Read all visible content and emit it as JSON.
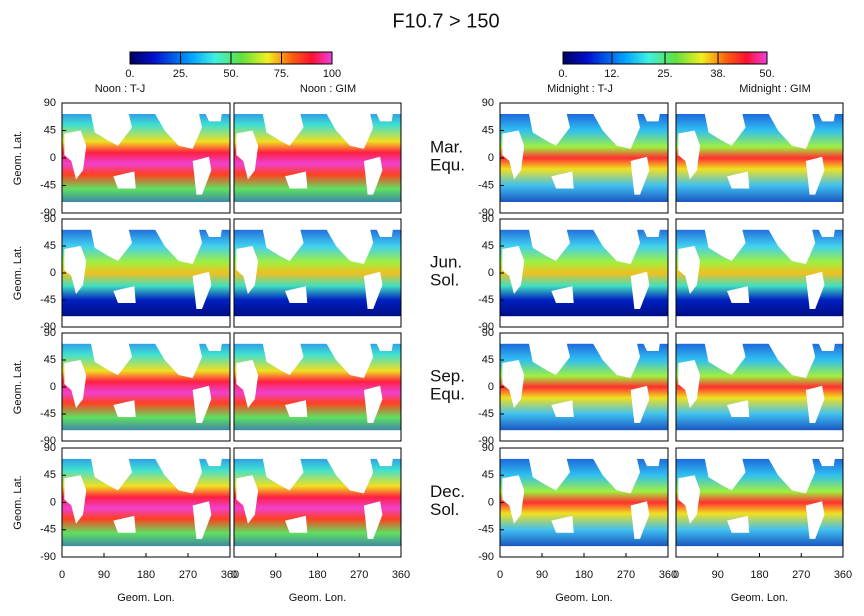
{
  "title": "F10.7 > 150",
  "colorbars": [
    {
      "lim": [
        0,
        100
      ],
      "ticks": [
        {
          "value": 0,
          "label": "0."
        },
        {
          "value": 25,
          "label": "25."
        },
        {
          "value": 50,
          "label": "50."
        },
        {
          "value": 75,
          "label": "75."
        },
        100
      ]
    },
    {
      "lim": [
        0,
        50
      ],
      "ticks": [
        {
          "value": 0,
          "label": "0."
        },
        {
          "value": 12,
          "label": "12."
        },
        {
          "value": 25,
          "label": "25."
        },
        {
          "value": 38,
          "label": "38."
        },
        {
          "value": 50,
          "label": "50."
        }
      ]
    }
  ],
  "columns": [
    "Noon : T-J",
    "Noon : GIM",
    "Midnight : T-J",
    "Midnight : GIM"
  ],
  "rows": [
    [
      "Mar.",
      "Equ."
    ],
    [
      "Jun.",
      "Sol."
    ],
    [
      "Sep.",
      "Equ."
    ],
    [
      "Dec.",
      "Sol."
    ]
  ],
  "ylabel": "Geom. Lat.",
  "ylim": [
    -90,
    90
  ],
  "yticks": [
    90,
    45,
    0,
    -45,
    -90
  ],
  "xlabel": "Geom. Lon.",
  "xlim": [
    0,
    360
  ],
  "xticks": [
    0,
    90,
    180,
    270,
    360
  ]
}
